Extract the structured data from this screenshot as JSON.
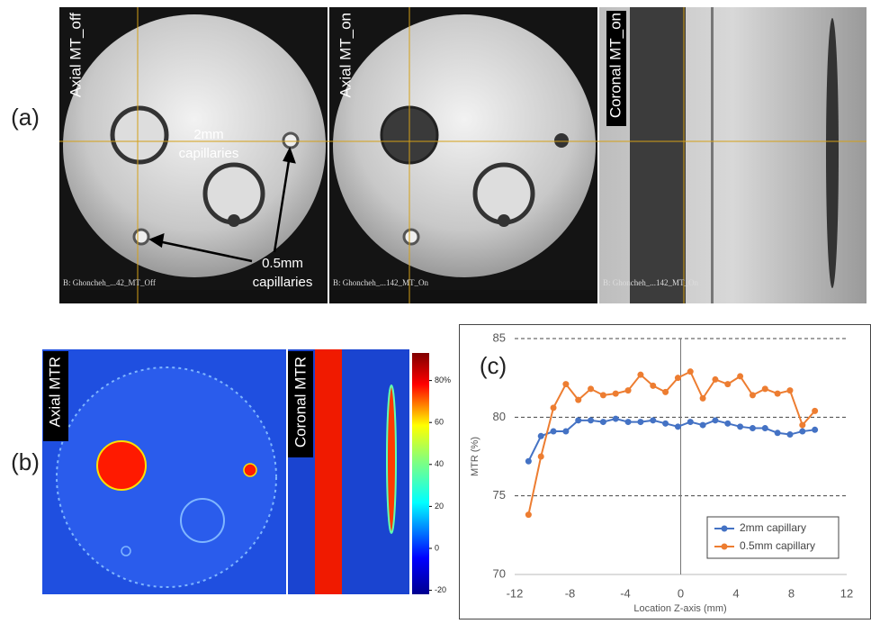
{
  "panel_labels": [
    "(a)",
    "(b)",
    "(c)"
  ],
  "panel_a": {
    "views": [
      {
        "title": "Axial MT_off",
        "caption": "B: Ghoncheh_...42_MT_Off"
      },
      {
        "title": "Axial MT_on",
        "caption": "B: Ghoncheh_...142_MT_On"
      },
      {
        "title": "Coronal MT_on",
        "caption": "B: Ghoncheh_...142_MT_On"
      }
    ],
    "annotations": [
      [
        "2mm",
        "capillaries"
      ],
      [
        "0.5mm",
        "capillaries"
      ]
    ]
  },
  "panel_b": {
    "views": [
      "Axial MTR",
      "Coronal MTR"
    ],
    "colorbar_ticks": [
      {
        "value": 80,
        "label": "80%"
      },
      60,
      40,
      20,
      0,
      -20
    ]
  },
  "chart_data": {
    "type": "line",
    "x_label": "Location Z-axis (mm)",
    "y_label": "MTR (%)",
    "x": [
      -11,
      -10.1,
      -9.2,
      -8.3,
      -7.4,
      -6.5,
      -5.6,
      -4.7,
      -3.8,
      -2.9,
      -2,
      -1.1,
      -0.2,
      0.7,
      1.6,
      2.5,
      3.4,
      4.3,
      5.2,
      6.1,
      7,
      7.9,
      8.8,
      9.7
    ],
    "series": [
      {
        "name": "2mm capillary",
        "color": "#4472c4",
        "values": [
          77.2,
          78.8,
          79.1,
          79.1,
          79.8,
          79.8,
          79.7,
          79.9,
          79.7,
          79.7,
          79.8,
          79.6,
          79.4,
          79.7,
          79.5,
          79.8,
          79.6,
          79.4,
          79.3,
          79.3,
          79.0,
          78.9,
          79.1,
          79.2
        ]
      },
      {
        "name": "0.5mm capillary",
        "color": "#ed7d31",
        "values": [
          73.8,
          77.5,
          80.6,
          82.1,
          81.1,
          81.8,
          81.4,
          81.5,
          81.7,
          82.7,
          82.0,
          81.6,
          82.5,
          82.9,
          81.2,
          82.4,
          82.1,
          82.6,
          81.4,
          81.8,
          81.5,
          81.7,
          79.5,
          80.4
        ]
      }
    ],
    "xlim": [
      -12,
      12
    ],
    "xticks": [
      -12,
      -8,
      -4,
      0,
      4,
      8,
      12
    ],
    "ylim": [
      70,
      85
    ],
    "yticks": [
      70,
      75,
      80,
      85
    ],
    "grid": true,
    "legend": "lower right"
  }
}
